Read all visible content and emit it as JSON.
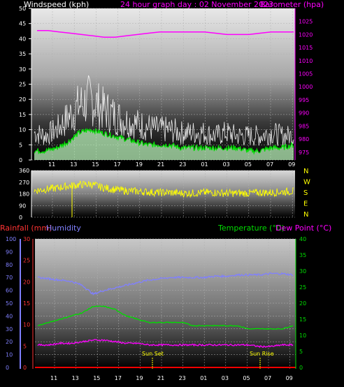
{
  "header": {
    "left_label": "Windspeed (kph)",
    "center_label": "24 hour graph day : 02 November 2023",
    "right_label": "Barometer (hpa)"
  },
  "x_ticks": [
    "11",
    "13",
    "15",
    "17",
    "19",
    "21",
    "23",
    "01",
    "03",
    "05",
    "07",
    "09"
  ],
  "colors": {
    "wind_gust": "#ffffff",
    "wind_avg": "#00dd00",
    "barometer": "#ff00ff",
    "wind_dir": "#ffff00",
    "humidity": "#8080ff",
    "temperature": "#00dd00",
    "dew_point": "#ff00ff",
    "rainfall": "#ff0000",
    "sun_marker": "#ffff00"
  },
  "chart_data": [
    {
      "type": "line",
      "title": "24 hour graph day : 02 November 2023",
      "xlabel": "",
      "ylabel": "Windspeed (kph)",
      "y2label": "Barometer (hpa)",
      "ylim": [
        0,
        50
      ],
      "y2lim": [
        975,
        1030
      ],
      "yticks": [
        0,
        5,
        10,
        15,
        20,
        25,
        30,
        35,
        40,
        45,
        50
      ],
      "y2ticks": [
        975,
        980,
        985,
        990,
        995,
        1000,
        1005,
        1010,
        1015,
        1020,
        1025
      ],
      "x": [
        "10",
        "11",
        "12",
        "13",
        "14",
        "15",
        "16",
        "17",
        "18",
        "19",
        "20",
        "21",
        "22",
        "23",
        "00",
        "01",
        "02",
        "03",
        "04",
        "05",
        "06",
        "07",
        "08",
        "09"
      ],
      "series": [
        {
          "name": "Windspeed (kph)",
          "axis": "left",
          "values": [
            9,
            8,
            10,
            14,
            18,
            20,
            17,
            15,
            13,
            12,
            11,
            10,
            10,
            9,
            9,
            9,
            8,
            9,
            8,
            8,
            8,
            9,
            8,
            8
          ]
        },
        {
          "name": "",
          "axis": "left",
          "values": [
            3,
            3,
            4,
            6,
            9,
            10,
            9,
            8,
            7,
            6,
            5,
            5,
            5,
            4,
            4,
            4,
            4,
            4,
            4,
            3,
            3,
            4,
            4,
            5
          ]
        },
        {
          "name": "Barometer (hpa)",
          "axis": "right",
          "values": [
            1021.5,
            1021.5,
            1021,
            1020.5,
            1020,
            1019.5,
            1019,
            1019,
            1019.5,
            1020,
            1020.5,
            1021,
            1021,
            1021,
            1021,
            1021,
            1020.5,
            1020,
            1020,
            1020,
            1020.5,
            1021,
            1021,
            1021
          ]
        }
      ],
      "legend": "top"
    },
    {
      "type": "line",
      "ylabel": "",
      "ylim": [
        0,
        360
      ],
      "yticks": [
        0,
        90,
        180,
        270,
        360
      ],
      "right_labels": [
        "N",
        "W",
        "S",
        "E",
        "N"
      ],
      "x": [
        "10",
        "11",
        "12",
        "13",
        "14",
        "15",
        "16",
        "17",
        "18",
        "19",
        "20",
        "21",
        "22",
        "23",
        "00",
        "01",
        "02",
        "03",
        "04",
        "05",
        "06",
        "07",
        "08",
        "09"
      ],
      "series": [
        {
          "name": "",
          "values": [
            205,
            215,
            225,
            240,
            250,
            255,
            230,
            215,
            205,
            200,
            195,
            190,
            190,
            185,
            185,
            190,
            190,
            185,
            185,
            185,
            190,
            190,
            195,
            200
          ]
        }
      ]
    },
    {
      "type": "line",
      "title": "",
      "ylabel": "Rainfall (mm)",
      "y_humidity_label": "Humidity",
      "y2label": "Temperature (°C)",
      "y3label": "Dew Point (°C)",
      "ylim": [
        0,
        100
      ],
      "yticks": [
        0,
        10,
        20,
        30,
        40,
        50,
        60,
        70,
        80,
        90,
        100
      ],
      "rain_ylim": [
        0,
        30
      ],
      "rain_yticks": [
        0,
        5,
        10,
        15,
        20,
        25,
        30
      ],
      "temp_ylim": [
        0,
        40
      ],
      "temp_yticks": [
        0,
        5,
        10,
        15,
        20,
        25,
        30,
        35,
        40
      ],
      "x": [
        "10",
        "11",
        "12",
        "13",
        "14",
        "15",
        "16",
        "17",
        "18",
        "19",
        "20",
        "21",
        "22",
        "23",
        "00",
        "01",
        "02",
        "03",
        "04",
        "05",
        "06",
        "07",
        "08",
        "09"
      ],
      "series": [
        {
          "name": "Humidity",
          "axis": "humidity",
          "values": [
            70,
            69,
            68,
            67,
            64,
            57,
            60,
            62,
            64,
            66,
            68,
            69,
            70,
            70,
            70,
            70,
            71,
            71,
            72,
            72,
            72,
            73,
            73,
            72
          ]
        },
        {
          "name": "Temperature (°C)",
          "axis": "temp",
          "values": [
            13,
            14,
            15,
            16,
            17,
            19,
            19,
            18,
            16,
            15,
            14,
            14,
            14,
            14,
            13,
            13,
            13,
            13,
            13,
            12,
            12,
            12,
            12,
            13
          ]
        },
        {
          "name": "Dew Point (°C)",
          "axis": "temp",
          "values": [
            7,
            7,
            7.5,
            7.5,
            8,
            8.5,
            8.5,
            8,
            7.5,
            7.5,
            7,
            7,
            7,
            7,
            7,
            7,
            7,
            7,
            7,
            7,
            6.5,
            6.5,
            7,
            7
          ]
        },
        {
          "name": "Rainfall (mm)",
          "axis": "rain",
          "values": [
            0,
            0,
            0,
            0,
            0,
            0,
            0,
            0,
            0,
            0,
            0,
            0,
            0,
            0,
            0,
            0,
            0,
            0,
            0,
            0,
            0,
            0,
            0,
            0
          ]
        }
      ],
      "annotations": [
        {
          "text": "Sun Set",
          "x": "20"
        },
        {
          "text": "Sun Rise",
          "x": "07"
        }
      ]
    }
  ]
}
